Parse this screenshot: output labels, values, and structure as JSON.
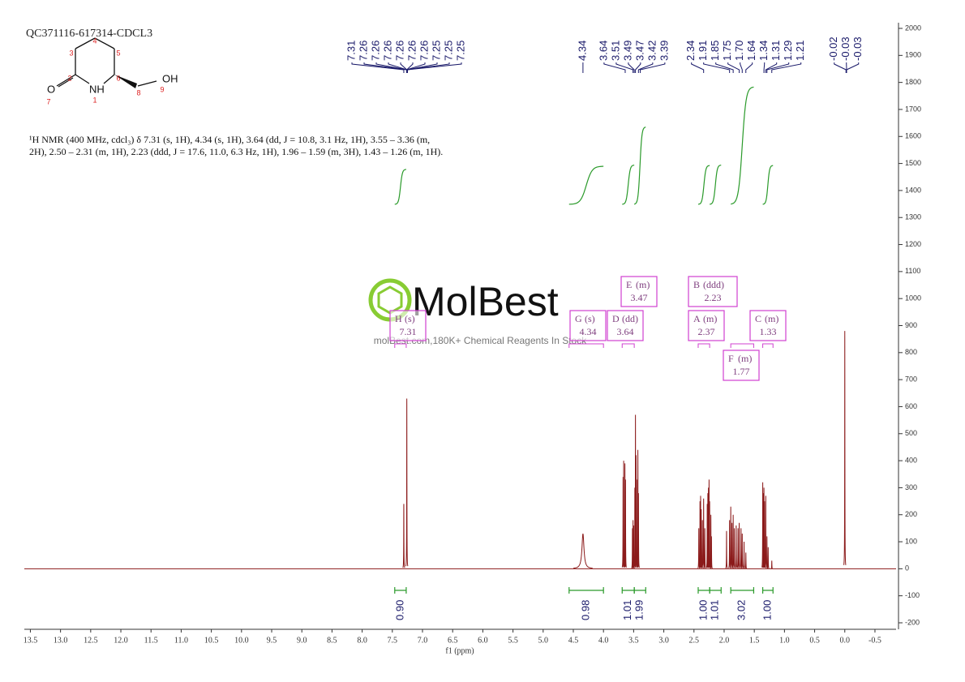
{
  "chart_data": {
    "type": "nmr",
    "title": "QC371116-617314-CDCL3",
    "description": [
      "¹H NMR (400 MHz, cdcl₃) δ 7.31 (s, 1H), 4.34 (s, 1H), 3.64 (dd, J = 10.8, 3.1 Hz, 1H), 3.55 – 3.36 (m,",
      "2H), 2.50 – 2.31 (m, 1H), 2.23 (ddd, J = 17.6, 11.0, 6.3 Hz, 1H), 1.96 – 1.59 (m, 3H), 1.43 – 1.26 (m, 1H)."
    ],
    "structure": {
      "atoms": [
        "O",
        "NH",
        "OH"
      ],
      "numbers": [
        1,
        2,
        3,
        4,
        5,
        6,
        7,
        8,
        9
      ]
    },
    "watermark": {
      "logo": "MolBest",
      "text": "molBest.com,180K+ Chemical Reagents In Stock"
    },
    "xlabel": "f1 (ppm)",
    "xlim": [
      13.6,
      -0.85
    ],
    "xticks": [
      13.5,
      {
        "value": 13,
        "label": "13.0"
      },
      12.5,
      {
        "value": 12,
        "label": "12.0"
      },
      11.5,
      {
        "value": 11,
        "label": "11.0"
      },
      10.5,
      {
        "value": 10,
        "label": "10.0"
      },
      9.5,
      {
        "value": 9,
        "label": "9.0"
      },
      8.5,
      {
        "value": 8,
        "label": "8.0"
      },
      7.5,
      {
        "value": 7,
        "label": "7.0"
      },
      6.5,
      {
        "value": 6,
        "label": "6.0"
      },
      5.5,
      {
        "value": 5,
        "label": "5.0"
      },
      4.5,
      {
        "value": 4,
        "label": "4.0"
      },
      3.5,
      {
        "value": 3,
        "label": "3.0"
      },
      2.5,
      {
        "value": 2,
        "label": "2.0"
      },
      1.5,
      {
        "value": 1,
        "label": "1.0"
      },
      0.5,
      {
        "value": 0,
        "label": "0.0"
      },
      -0.5
    ],
    "ylim": [
      -200,
      2000
    ],
    "yticks": [
      -200,
      -100,
      0,
      100,
      200,
      300,
      400,
      500,
      600,
      700,
      800,
      900,
      1000,
      1100,
      1200,
      1300,
      1400,
      1500,
      1600,
      1700,
      1800,
      1900,
      2000
    ],
    "peak_labels": [
      7.31,
      7.26,
      7.26,
      7.26,
      7.26,
      7.26,
      7.26,
      7.25,
      7.25,
      7.25,
      4.34,
      3.64,
      3.51,
      3.49,
      3.47,
      3.42,
      3.39,
      2.34,
      1.91,
      1.85,
      1.75,
      {
        "value": 1.7,
        "label": "1.70"
      },
      1.64,
      1.34,
      1.31,
      1.29,
      1.21,
      -0.02,
      -0.03,
      -0.03
    ],
    "peaks": {
      "x": [
        7.31,
        7.26,
        4.34,
        3.675,
        3.665,
        3.645,
        3.635,
        3.52,
        3.51,
        3.5,
        3.48,
        3.47,
        3.46,
        3.44,
        3.43,
        3.42,
        2.42,
        2.4,
        2.39,
        2.38,
        2.36,
        2.34,
        2.32,
        2.28,
        2.27,
        2.26,
        2.25,
        2.24,
        2.22,
        2.21,
        1.96,
        1.91,
        1.89,
        1.87,
        1.85,
        1.83,
        1.8,
        1.77,
        1.75,
        1.72,
        1.7,
        1.67,
        1.64,
        1.36,
        1.35,
        1.34,
        1.33,
        1.31,
        1.29,
        1.27,
        1.21,
        0
      ],
      "values": [
        240,
        630,
        130,
        340,
        400,
        390,
        330,
        150,
        180,
        160,
        300,
        570,
        420,
        330,
        440,
        280,
        150,
        250,
        270,
        220,
        180,
        260,
        150,
        240,
        280,
        300,
        330,
        250,
        200,
        120,
        140,
        180,
        230,
        170,
        200,
        150,
        160,
        150,
        170,
        150,
        130,
        100,
        60,
        320,
        280,
        300,
        250,
        270,
        120,
        80,
        30,
        880
      ]
    },
    "integrals": {
      "ranges": [
        [
          7.46,
          7.27
        ],
        [
          4.57,
          4.0
        ],
        [
          3.69,
          3.49
        ],
        [
          3.49,
          3.3
        ],
        [
          2.43,
          2.24
        ],
        [
          2.24,
          2.05
        ],
        [
          1.89,
          1.51
        ],
        [
          1.36,
          1.19
        ]
      ],
      "values": [
        {
          "value": 0.9,
          "label": "0.90"
        },
        0.98,
        1.01,
        1.99,
        {
          "value": 1,
          "label": "1.00"
        },
        1.01,
        3.02,
        {
          "value": 1,
          "label": "1.00"
        }
      ]
    },
    "multiplets": {
      "names": [
        "H",
        "G",
        "D",
        "E",
        "B",
        "A",
        "F",
        "C"
      ],
      "types": [
        "(s)",
        "(s)",
        "(dd)",
        "(m)",
        "(ddd)",
        "(m)",
        "(m)",
        "(m)"
      ],
      "shifts": [
        7.31,
        4.34,
        3.64,
        3.47,
        2.23,
        2.37,
        1.77,
        1.33
      ]
    }
  }
}
